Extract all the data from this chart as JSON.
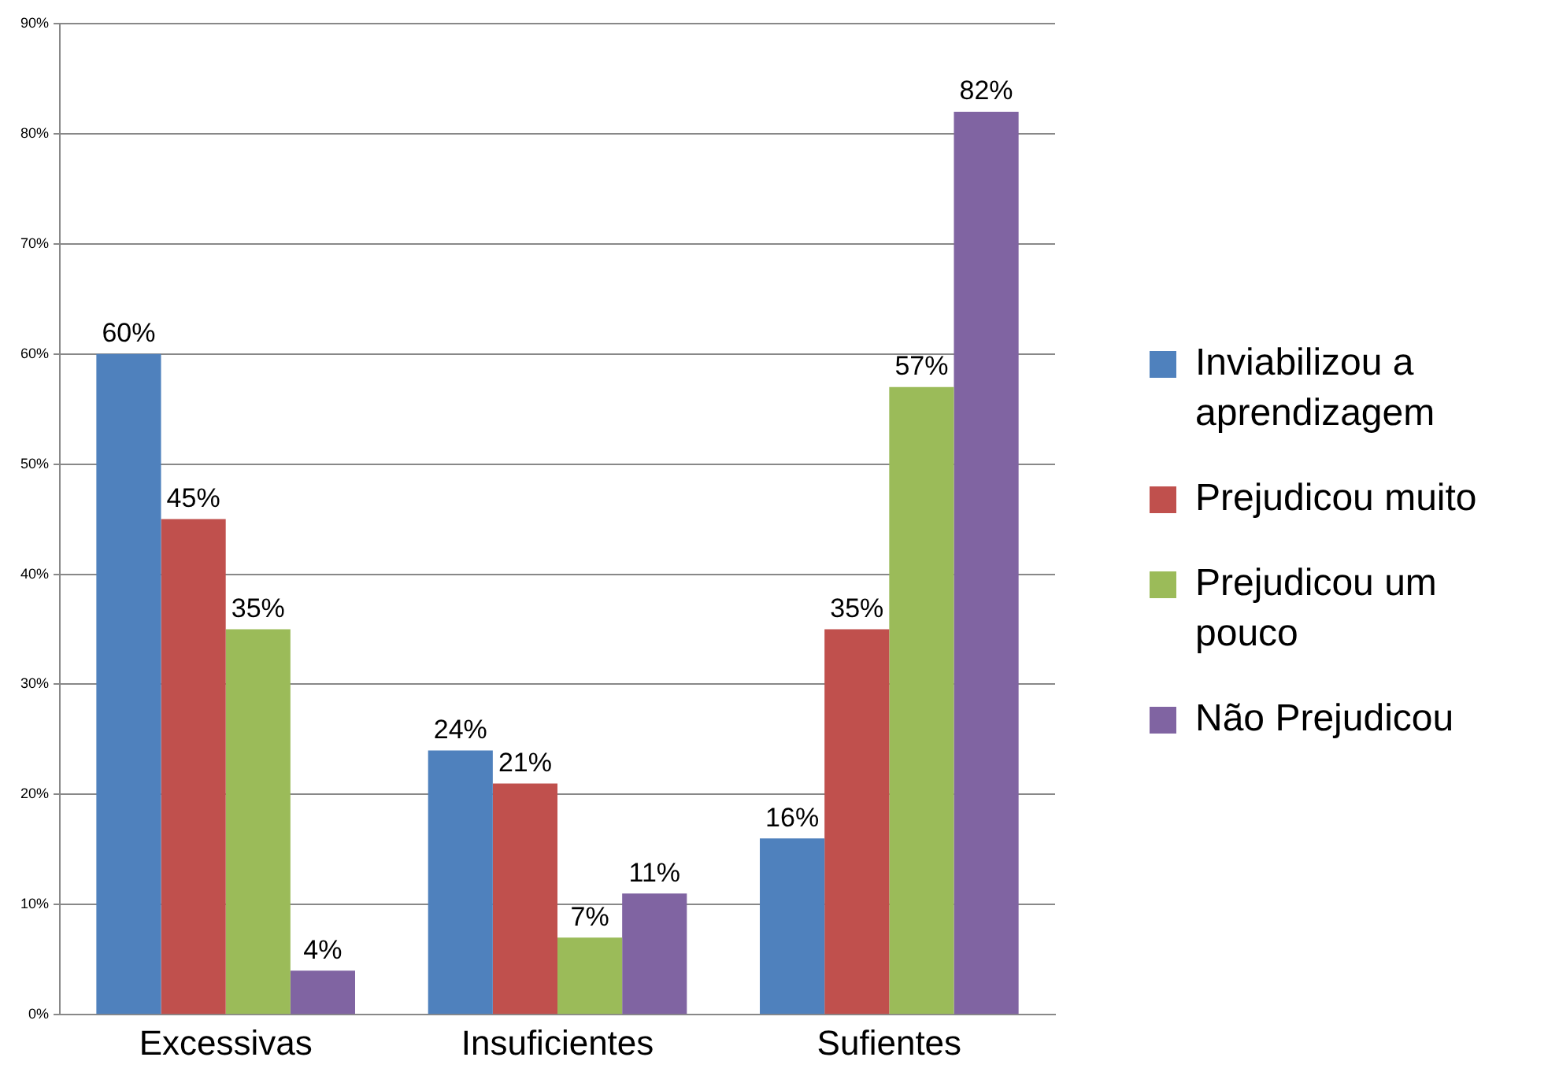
{
  "chart_data": {
    "type": "bar",
    "categories": [
      "Excessivas",
      "Insuficientes",
      "Sufientes"
    ],
    "series": [
      {
        "name": "Inviabilizou a aprendizagem",
        "color": "#4f81bd",
        "values": [
          60,
          24,
          16
        ],
        "value_labels": [
          "60%",
          "24%",
          "16%"
        ]
      },
      {
        "name": "Prejudicou muito",
        "color": "#c0504d",
        "values": [
          45,
          21,
          35
        ],
        "value_labels": [
          "45%",
          "21%",
          "35%"
        ]
      },
      {
        "name": "Prejudicou um pouco",
        "color": "#9bbb59",
        "values": [
          35,
          7,
          57
        ],
        "value_labels": [
          "35%",
          "7%",
          "57%"
        ]
      },
      {
        "name": "Não Prejudicou",
        "color": "#8064a2",
        "values": [
          4,
          11,
          82
        ],
        "value_labels": [
          "4%",
          "11%",
          "82%"
        ]
      }
    ],
    "ylim": [
      0,
      90
    ],
    "yticks": [
      {
        "value": 0,
        "label": "0%"
      },
      {
        "value": 10,
        "label": "10%"
      },
      {
        "value": 20,
        "label": "20%"
      },
      {
        "value": 30,
        "label": "30%"
      },
      {
        "value": 40,
        "label": "40%"
      },
      {
        "value": 50,
        "label": "50%"
      },
      {
        "value": 60,
        "label": "60%"
      },
      {
        "value": 70,
        "label": "70%"
      },
      {
        "value": 80,
        "label": "80%"
      },
      {
        "value": 90,
        "label": "90%"
      }
    ],
    "grid": "y",
    "legend": "right"
  }
}
